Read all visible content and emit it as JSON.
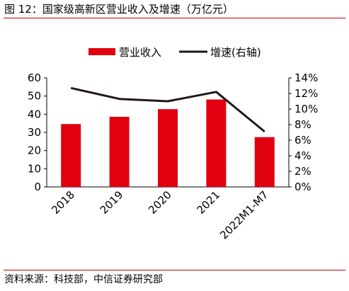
{
  "header": {
    "title": "图 12：国家级高新区营业收入及增速（万亿元）"
  },
  "footer": {
    "source": "资料来源：科技部，中信证券研究部"
  },
  "chart_data": {
    "type": "bar",
    "categories": [
      "2018",
      "2019",
      "2020",
      "2021",
      "2022M1-M7"
    ],
    "series": [
      {
        "name": "营业收入",
        "type": "bar",
        "axis": "left",
        "color": "#e1000f",
        "values": [
          34.6,
          38.6,
          42.8,
          48.1,
          27.4
        ]
      },
      {
        "name": "增速(右轴)",
        "type": "line",
        "axis": "right",
        "color": "#231815",
        "values": [
          12.7,
          11.3,
          11.0,
          12.2,
          7.1
        ]
      }
    ],
    "left_axis": {
      "ylim": [
        0,
        60
      ],
      "ticks": [
        "0",
        "10",
        "20",
        "30",
        "40",
        "50",
        "60"
      ]
    },
    "right_axis": {
      "ylim": [
        0,
        14
      ],
      "ticks": [
        "0%",
        "2%",
        "4%",
        "6%",
        "8%",
        "10%",
        "12%",
        "14%"
      ]
    },
    "legend": {
      "position": "top"
    },
    "grid": false
  }
}
